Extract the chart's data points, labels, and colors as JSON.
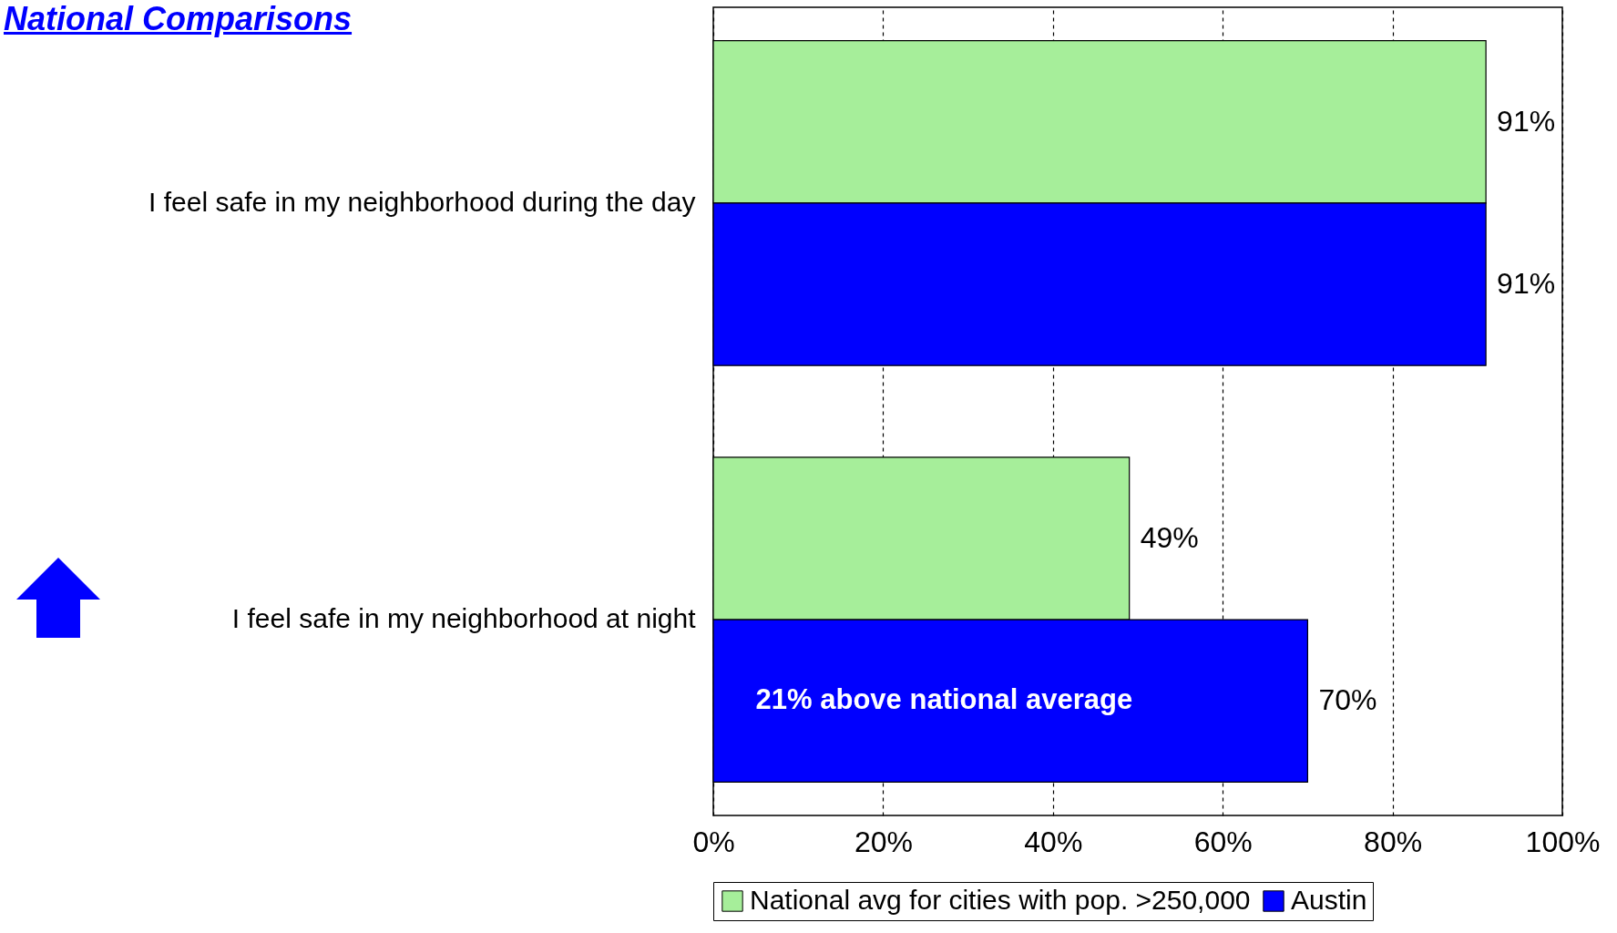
{
  "chart_data": {
    "type": "bar",
    "orientation": "horizontal",
    "title": "National Comparisons",
    "categories": [
      "I feel safe in my neighborhood during the day",
      "I feel safe in my neighborhood at night"
    ],
    "series": [
      {
        "name": "National avg for cities with pop. >250,000",
        "color": "#a6ee9a",
        "values": [
          91,
          49
        ],
        "value_labels": [
          "91%",
          "49%"
        ]
      },
      {
        "name": "Austin",
        "color": "#0000ff",
        "values": [
          91,
          70
        ],
        "value_labels": [
          "91%",
          "70%"
        ]
      }
    ],
    "xlim": [
      0,
      100
    ],
    "xticks": [
      {
        "value": 0,
        "label": "0%"
      },
      {
        "value": 20,
        "label": "20%"
      },
      {
        "value": 40,
        "label": "40%"
      },
      {
        "value": 60,
        "label": "60%"
      },
      {
        "value": 80,
        "label": "80%"
      },
      {
        "value": 100,
        "label": "100%"
      }
    ],
    "grid": "x",
    "legend": "bottom",
    "annotations": [
      {
        "text": "21% above national average",
        "x": 5,
        "y": "I feel safe in my neighborhood at night"
      }
    ]
  }
}
